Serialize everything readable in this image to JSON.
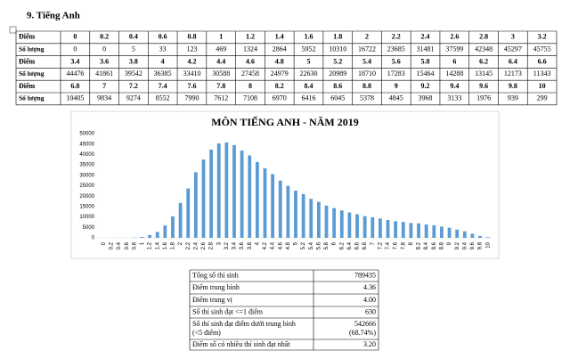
{
  "heading": "9.  Tiếng Anh",
  "score_table": {
    "score_label": "Điểm",
    "count_label": "Số lượng",
    "blocks": [
      {
        "scores": [
          0,
          0.2,
          0.4,
          0.6,
          0.8,
          1,
          1.2,
          1.4,
          1.6,
          1.8,
          2,
          2.2,
          2.4,
          2.6,
          2.8,
          3,
          3.2
        ],
        "counts": [
          0,
          0,
          5,
          33,
          123,
          469,
          1324,
          2864,
          5952,
          10310,
          16722,
          23685,
          31481,
          37599,
          42348,
          45297,
          45755
        ]
      },
      {
        "scores": [
          3.4,
          3.6,
          3.8,
          4,
          4.2,
          4.4,
          4.6,
          4.8,
          5,
          5.2,
          5.4,
          5.6,
          5.8,
          6,
          6.2,
          6.4,
          6.6
        ],
        "counts": [
          44476,
          41861,
          39542,
          36385,
          33410,
          30588,
          27458,
          24979,
          22630,
          20989,
          18710,
          17283,
          15464,
          14288,
          13145,
          12173,
          11343
        ]
      },
      {
        "scores": [
          6.8,
          7,
          7.2,
          7.4,
          7.6,
          7.8,
          8,
          8.2,
          8.4,
          8.6,
          8.8,
          9,
          9.2,
          9.4,
          9.6,
          9.8,
          10
        ],
        "counts": [
          10405,
          9834,
          9274,
          8552,
          7990,
          7612,
          7108,
          6970,
          6416,
          6045,
          5378,
          4845,
          3968,
          3133,
          1976,
          939,
          299
        ]
      }
    ]
  },
  "chart_data": {
    "type": "bar",
    "title": "MÔN TIẾNG ANH - NĂM 2019",
    "categories": [
      "0",
      "0.2",
      "0.4",
      "0.6",
      "0.8",
      "1",
      "1.2",
      "1.4",
      "1.6",
      "1.8",
      "2",
      "2.2",
      "2.4",
      "2.6",
      "2.8",
      "3",
      "3.2",
      "3.4",
      "3.6",
      "3.8",
      "4",
      "4.2",
      "4.4",
      "4.6",
      "4.8",
      "5",
      "5.2",
      "5.4",
      "5.6",
      "5.8",
      "6",
      "6.2",
      "6.4",
      "6.6",
      "6.8",
      "7",
      "7.2",
      "7.4",
      "7.6",
      "7.8",
      "8",
      "8.2",
      "8.4",
      "8.6",
      "8.8",
      "9",
      "9.2",
      "9.4",
      "9.6",
      "9.8",
      "10"
    ],
    "values": [
      0,
      0,
      5,
      33,
      123,
      469,
      1324,
      2864,
      5952,
      10310,
      16722,
      23685,
      31481,
      37599,
      42348,
      45297,
      45755,
      44476,
      41861,
      39542,
      36385,
      33410,
      30588,
      27458,
      24979,
      22630,
      20989,
      18710,
      17283,
      15464,
      14288,
      13145,
      12173,
      11343,
      10405,
      9834,
      9274,
      8552,
      7990,
      7612,
      7108,
      6970,
      6416,
      6045,
      5378,
      4845,
      3968,
      3133,
      1976,
      939,
      299
    ],
    "color": "#5b9bd5",
    "ylim": [
      0,
      50000
    ],
    "yticks": [
      0,
      5000,
      10000,
      15000,
      20000,
      25000,
      30000,
      35000,
      40000,
      45000,
      50000
    ]
  },
  "summary_table": {
    "rows": [
      [
        "Tổng số thí sinh",
        "789435"
      ],
      [
        "Điểm trung bình",
        "4.36"
      ],
      [
        "Điểm trung vị",
        "4.00"
      ],
      [
        "Số thí sinh đạt <=1 điểm",
        "630"
      ],
      [
        [
          "Số thí sinh đạt điểm dưới trung bình",
          "(<5 điểm)"
        ],
        [
          "542666",
          "(68.74%)"
        ]
      ],
      [
        "Điểm số có nhiều thí sinh đạt nhất",
        "3.20"
      ]
    ]
  }
}
